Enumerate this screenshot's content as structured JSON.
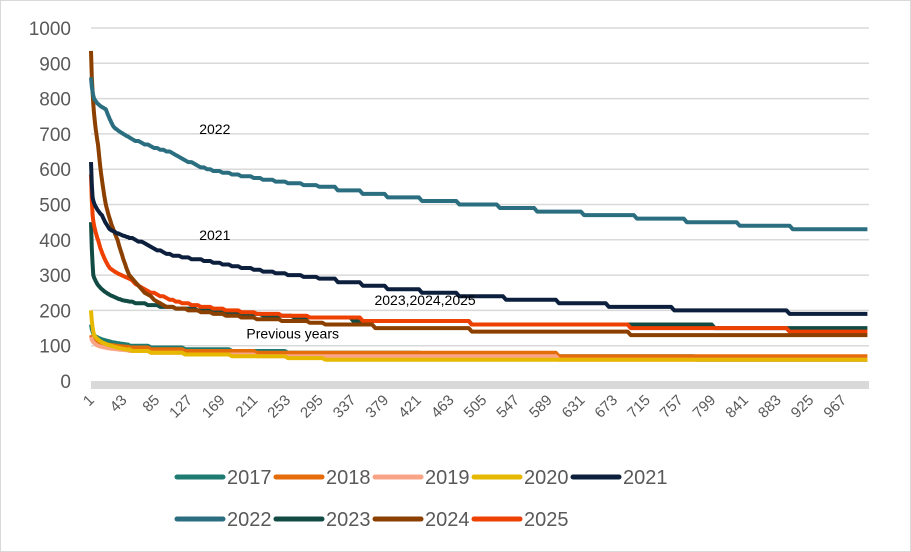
{
  "chart_data": {
    "type": "line",
    "title": "",
    "xlabel": "",
    "ylabel": "",
    "xlim": [
      1,
      1000
    ],
    "ylim": [
      0,
      1000
    ],
    "yticks": [
      0,
      100,
      200,
      300,
      400,
      500,
      600,
      700,
      800,
      900,
      1000
    ],
    "xticks": [
      1,
      43,
      85,
      127,
      169,
      211,
      253,
      295,
      337,
      379,
      421,
      463,
      505,
      547,
      589,
      631,
      673,
      715,
      757,
      799,
      841,
      883,
      925,
      967
    ],
    "grid": true,
    "legend_position": "bottom",
    "annotations": [
      {
        "text": "2022",
        "x": 160,
        "y": 700
      },
      {
        "text": "2021",
        "x": 160,
        "y": 400
      },
      {
        "text": "2023,2024,2025",
        "x": 430,
        "y": 215
      },
      {
        "text": "Previous years",
        "x": 260,
        "y": 120
      }
    ],
    "series": [
      {
        "name": "2017",
        "color": "#1e7b72",
        "points": [
          [
            1,
            160
          ],
          [
            5,
            130
          ],
          [
            20,
            115
          ],
          [
            60,
            100
          ],
          [
            150,
            90
          ],
          [
            300,
            80
          ],
          [
            600,
            70
          ],
          [
            1000,
            60
          ]
        ]
      },
      {
        "name": "2018",
        "color": "#e46c0a",
        "points": [
          [
            1,
            130
          ],
          [
            10,
            110
          ],
          [
            60,
            95
          ],
          [
            150,
            85
          ],
          [
            300,
            80
          ],
          [
            600,
            75
          ],
          [
            1000,
            70
          ]
        ]
      },
      {
        "name": "2019",
        "color": "#f9a487",
        "points": [
          [
            1,
            125
          ],
          [
            10,
            100
          ],
          [
            60,
            85
          ],
          [
            150,
            75
          ],
          [
            300,
            70
          ],
          [
            600,
            65
          ],
          [
            1000,
            60
          ]
        ]
      },
      {
        "name": "2020",
        "color": "#e6b800",
        "points": [
          [
            1,
            200
          ],
          [
            5,
            130
          ],
          [
            20,
            105
          ],
          [
            60,
            85
          ],
          [
            150,
            75
          ],
          [
            300,
            65
          ],
          [
            600,
            60
          ],
          [
            1000,
            55
          ]
        ]
      },
      {
        "name": "2021",
        "color": "#0c1f3d",
        "points": [
          [
            1,
            620
          ],
          [
            3,
            520
          ],
          [
            15,
            470
          ],
          [
            25,
            430
          ],
          [
            60,
            400
          ],
          [
            100,
            360
          ],
          [
            150,
            340
          ],
          [
            200,
            320
          ],
          [
            300,
            290
          ],
          [
            400,
            260
          ],
          [
            500,
            240
          ],
          [
            600,
            225
          ],
          [
            700,
            210
          ],
          [
            800,
            200
          ],
          [
            1000,
            190
          ]
        ]
      },
      {
        "name": "2022",
        "color": "#2a6e80",
        "points": [
          [
            1,
            860
          ],
          [
            5,
            800
          ],
          [
            20,
            770
          ],
          [
            30,
            720
          ],
          [
            60,
            680
          ],
          [
            100,
            650
          ],
          [
            150,
            600
          ],
          [
            200,
            580
          ],
          [
            300,
            550
          ],
          [
            400,
            520
          ],
          [
            500,
            500
          ],
          [
            600,
            480
          ],
          [
            700,
            465
          ],
          [
            800,
            450
          ],
          [
            900,
            435
          ],
          [
            1000,
            425
          ]
        ]
      },
      {
        "name": "2023",
        "color": "#114b44",
        "points": [
          [
            1,
            450
          ],
          [
            4,
            300
          ],
          [
            15,
            260
          ],
          [
            40,
            230
          ],
          [
            80,
            215
          ],
          [
            150,
            200
          ],
          [
            200,
            190
          ],
          [
            400,
            170
          ],
          [
            600,
            160
          ],
          [
            800,
            155
          ],
          [
            1000,
            148
          ]
        ]
      },
      {
        "name": "2024",
        "color": "#8b4000",
        "points": [
          [
            1,
            935
          ],
          [
            3,
            820
          ],
          [
            10,
            670
          ],
          [
            20,
            500
          ],
          [
            35,
            400
          ],
          [
            50,
            300
          ],
          [
            70,
            250
          ],
          [
            100,
            210
          ],
          [
            150,
            195
          ],
          [
            200,
            180
          ],
          [
            300,
            165
          ],
          [
            400,
            150
          ],
          [
            600,
            140
          ],
          [
            800,
            130
          ],
          [
            1000,
            125
          ]
        ]
      },
      {
        "name": "2025",
        "color": "#ee4000",
        "points": [
          [
            1,
            585
          ],
          [
            3,
            470
          ],
          [
            10,
            400
          ],
          [
            25,
            320
          ],
          [
            50,
            290
          ],
          [
            80,
            250
          ],
          [
            120,
            220
          ],
          [
            200,
            195
          ],
          [
            300,
            180
          ],
          [
            400,
            170
          ],
          [
            600,
            160
          ],
          [
            800,
            150
          ],
          [
            1000,
            140
          ]
        ]
      }
    ]
  }
}
